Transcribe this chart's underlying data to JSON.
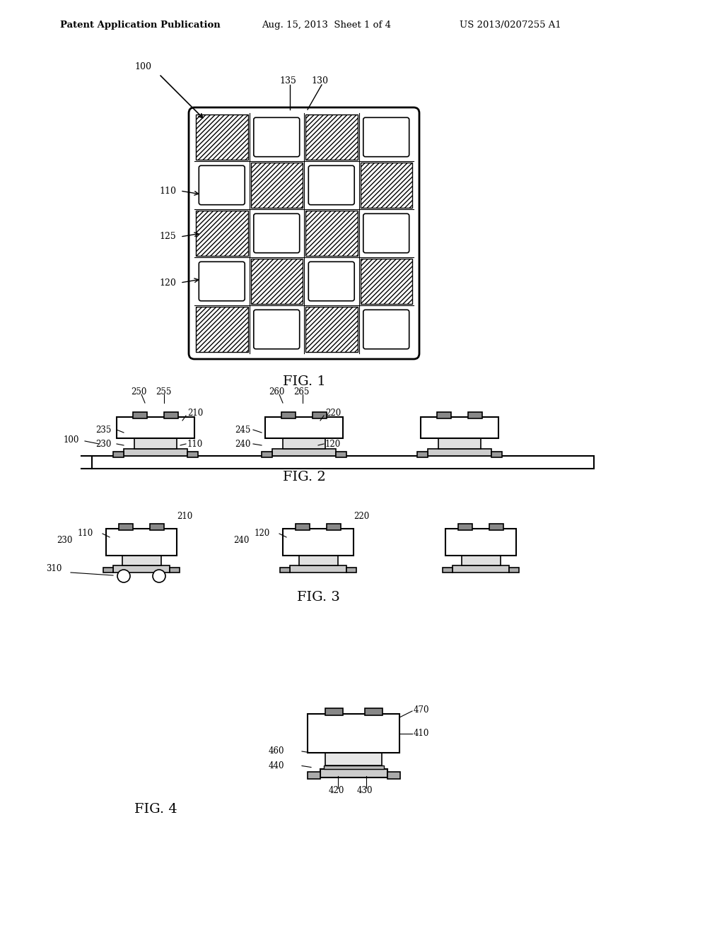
{
  "header_left": "Patent Application Publication",
  "header_mid": "Aug. 15, 2013  Sheet 1 of 4",
  "header_right": "US 2013/0207255 A1",
  "fig1_label": "FIG. 1",
  "fig2_label": "FIG. 2",
  "fig3_label": "FIG. 3",
  "fig4_label": "FIG. 4",
  "bg_color": "#ffffff",
  "line_color": "#000000"
}
